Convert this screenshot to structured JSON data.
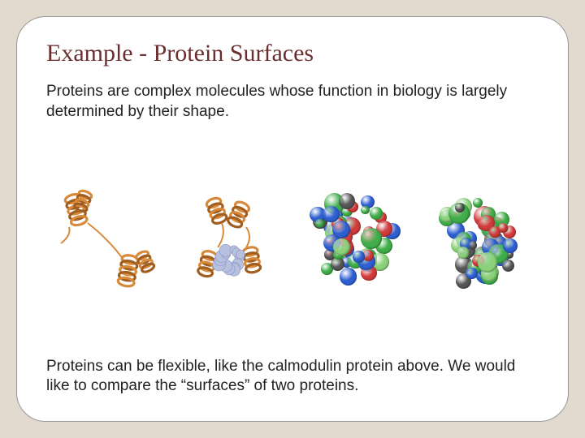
{
  "slide": {
    "title": "Example - Protein Surfaces",
    "intro_text": "Proteins are complex molecules whose function in biology is largely determined by their shape.",
    "outro_text": "Proteins can be flexible, like the calmodulin protein above.  We would like to compare the “surfaces” of two proteins.",
    "background_color": "#e2d9cf",
    "card_bg": "#ffffff",
    "title_color": "#6b2e2e",
    "text_color": "#222222",
    "title_fontsize": 30,
    "body_fontsize": 19,
    "border_radius": 36
  },
  "proteins": [
    {
      "type": "ribbon",
      "name": "calmodulin-ribbon-extended",
      "helix_color": "#d88a3a",
      "helix_shadow": "#a05e20",
      "pose": "extended"
    },
    {
      "type": "ribbon",
      "name": "calmodulin-ribbon-bound",
      "helix_color": "#d88a3a",
      "helix_shadow": "#a05e20",
      "ligand_color": "#b8c0e0",
      "pose": "compact"
    },
    {
      "type": "surface",
      "name": "calmodulin-surface-a",
      "palette": [
        "#3fae49",
        "#d23a3a",
        "#2e5fd1",
        "#555555",
        "#8bd17a"
      ],
      "blob_count": 55
    },
    {
      "type": "surface",
      "name": "calmodulin-surface-b",
      "palette": [
        "#3fae49",
        "#d23a3a",
        "#2e5fd1",
        "#555555",
        "#8bd17a"
      ],
      "blob_count": 55
    }
  ]
}
